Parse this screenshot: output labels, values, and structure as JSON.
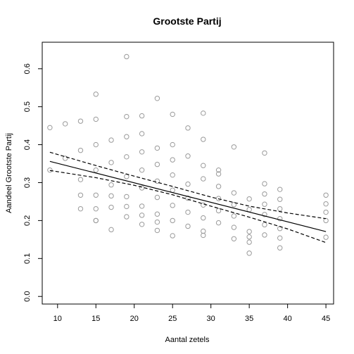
{
  "chart_data": {
    "type": "scatter",
    "title": "Grootste Partij",
    "xlabel": "Aantal zetels",
    "ylabel": "Aandeel Grootste Partij",
    "xlim": [
      8,
      46
    ],
    "ylim": [
      -0.02,
      0.67
    ],
    "x_ticks": [
      10,
      15,
      20,
      25,
      30,
      35,
      40,
      45
    ],
    "y_ticks": [
      0.0,
      0.1,
      0.2,
      0.3,
      0.4,
      0.5,
      0.6
    ],
    "points": [
      [
        9,
        0.445
      ],
      [
        9,
        0.333
      ],
      [
        11,
        0.455
      ],
      [
        11,
        0.364
      ],
      [
        13,
        0.462
      ],
      [
        13,
        0.385
      ],
      [
        13,
        0.308
      ],
      [
        13,
        0.267
      ],
      [
        13,
        0.231
      ],
      [
        15,
        0.533
      ],
      [
        15,
        0.467
      ],
      [
        15,
        0.4
      ],
      [
        15,
        0.333
      ],
      [
        15,
        0.267
      ],
      [
        15,
        0.231
      ],
      [
        15,
        0.2
      ],
      [
        15,
        0.2
      ],
      [
        17,
        0.412
      ],
      [
        17,
        0.353
      ],
      [
        17,
        0.294
      ],
      [
        17,
        0.265
      ],
      [
        17,
        0.235
      ],
      [
        17,
        0.176
      ],
      [
        19,
        0.632
      ],
      [
        19,
        0.474
      ],
      [
        19,
        0.421
      ],
      [
        19,
        0.368
      ],
      [
        19,
        0.316
      ],
      [
        19,
        0.263
      ],
      [
        19,
        0.237
      ],
      [
        19,
        0.21
      ],
      [
        21,
        0.476
      ],
      [
        21,
        0.429
      ],
      [
        21,
        0.381
      ],
      [
        21,
        0.333
      ],
      [
        21,
        0.286
      ],
      [
        21,
        0.238
      ],
      [
        21,
        0.214
      ],
      [
        21,
        0.19
      ],
      [
        23,
        0.522
      ],
      [
        23,
        0.391
      ],
      [
        23,
        0.348
      ],
      [
        23,
        0.304
      ],
      [
        23,
        0.261
      ],
      [
        23,
        0.217
      ],
      [
        23,
        0.196
      ],
      [
        23,
        0.174
      ],
      [
        25,
        0.48
      ],
      [
        25,
        0.4
      ],
      [
        25,
        0.36
      ],
      [
        25,
        0.32
      ],
      [
        25,
        0.28
      ],
      [
        25,
        0.24
      ],
      [
        25,
        0.2
      ],
      [
        25,
        0.16
      ],
      [
        27,
        0.444
      ],
      [
        27,
        0.37
      ],
      [
        27,
        0.296
      ],
      [
        27,
        0.259
      ],
      [
        27,
        0.222
      ],
      [
        27,
        0.185
      ],
      [
        29,
        0.483
      ],
      [
        29,
        0.414
      ],
      [
        29,
        0.345
      ],
      [
        29,
        0.31
      ],
      [
        29,
        0.241
      ],
      [
        29,
        0.207
      ],
      [
        29,
        0.172
      ],
      [
        29,
        0.161
      ],
      [
        31,
        0.333
      ],
      [
        31,
        0.323
      ],
      [
        31,
        0.29
      ],
      [
        31,
        0.258
      ],
      [
        31,
        0.226
      ],
      [
        31,
        0.194
      ],
      [
        33,
        0.394
      ],
      [
        33,
        0.273
      ],
      [
        33,
        0.242
      ],
      [
        33,
        0.212
      ],
      [
        33,
        0.182
      ],
      [
        33,
        0.152
      ],
      [
        35,
        0.257
      ],
      [
        35,
        0.229
      ],
      [
        35,
        0.171
      ],
      [
        35,
        0.157
      ],
      [
        35,
        0.143
      ],
      [
        35,
        0.114
      ],
      [
        37,
        0.378
      ],
      [
        37,
        0.297
      ],
      [
        37,
        0.27
      ],
      [
        37,
        0.243
      ],
      [
        37,
        0.216
      ],
      [
        37,
        0.189
      ],
      [
        37,
        0.162
      ],
      [
        39,
        0.282
      ],
      [
        39,
        0.256
      ],
      [
        39,
        0.231
      ],
      [
        39,
        0.205
      ],
      [
        39,
        0.179
      ],
      [
        39,
        0.154
      ],
      [
        39,
        0.128
      ],
      [
        45,
        0.267
      ],
      [
        45,
        0.244
      ],
      [
        45,
        0.222
      ],
      [
        45,
        0.2
      ],
      [
        45,
        0.156
      ]
    ],
    "fit_line": {
      "x": [
        9,
        45
      ],
      "y": [
        0.356,
        0.171
      ]
    },
    "ci_upper": {
      "x": [
        9,
        15,
        20,
        25,
        30,
        35,
        40,
        45
      ],
      "y": [
        0.38,
        0.345,
        0.317,
        0.29,
        0.262,
        0.238,
        0.22,
        0.205
      ]
    },
    "ci_lower": {
      "x": [
        9,
        15,
        20,
        25,
        30,
        35,
        40,
        45
      ],
      "y": [
        0.332,
        0.313,
        0.293,
        0.268,
        0.238,
        0.209,
        0.178,
        0.142
      ]
    },
    "grid": false,
    "colors": {
      "points": "#9a9a9a",
      "line": "#000000",
      "background": "#ffffff"
    }
  }
}
